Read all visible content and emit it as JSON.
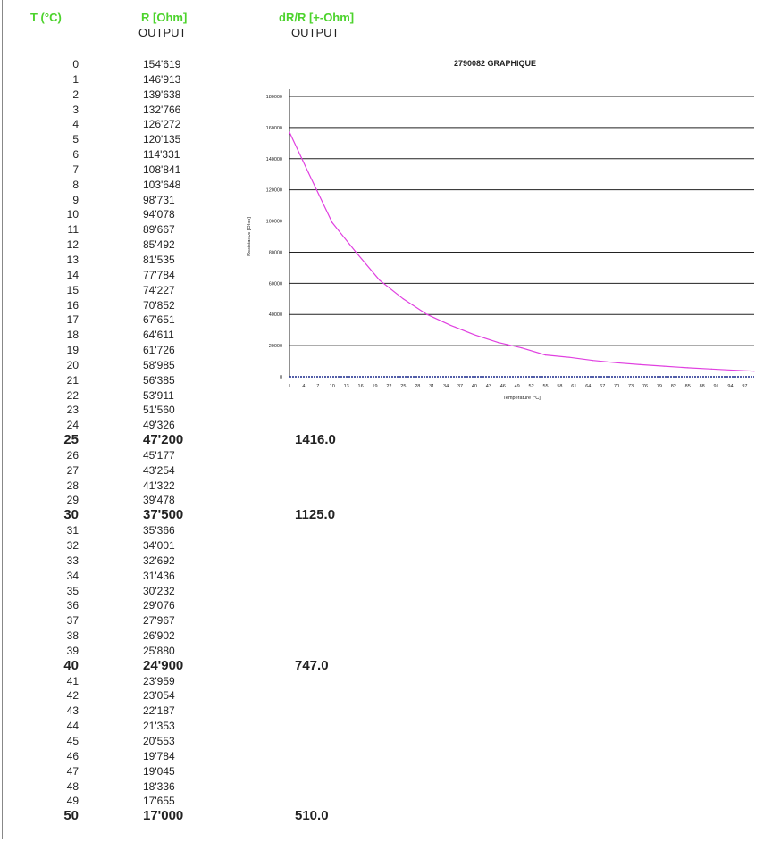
{
  "headers": {
    "t": "T (°C)",
    "r": "R [Ohm]",
    "r_sub": "OUTPUT",
    "d": "dR/R [+-Ohm]",
    "d_sub": "OUTPUT"
  },
  "rows": [
    {
      "t": "0",
      "r": "154'619",
      "d": ""
    },
    {
      "t": "1",
      "r": "146'913",
      "d": ""
    },
    {
      "t": "2",
      "r": "139'638",
      "d": ""
    },
    {
      "t": "3",
      "r": "132'766",
      "d": ""
    },
    {
      "t": "4",
      "r": "126'272",
      "d": ""
    },
    {
      "t": "5",
      "r": "120'135",
      "d": ""
    },
    {
      "t": "6",
      "r": "114'331",
      "d": ""
    },
    {
      "t": "7",
      "r": "108'841",
      "d": ""
    },
    {
      "t": "8",
      "r": "103'648",
      "d": ""
    },
    {
      "t": "9",
      "r": "98'731",
      "d": ""
    },
    {
      "t": "10",
      "r": "94'078",
      "d": ""
    },
    {
      "t": "11",
      "r": "89'667",
      "d": ""
    },
    {
      "t": "12",
      "r": "85'492",
      "d": ""
    },
    {
      "t": "13",
      "r": "81'535",
      "d": ""
    },
    {
      "t": "14",
      "r": "77'784",
      "d": ""
    },
    {
      "t": "15",
      "r": "74'227",
      "d": ""
    },
    {
      "t": "16",
      "r": "70'852",
      "d": ""
    },
    {
      "t": "17",
      "r": "67'651",
      "d": ""
    },
    {
      "t": "18",
      "r": "64'611",
      "d": ""
    },
    {
      "t": "19",
      "r": "61'726",
      "d": ""
    },
    {
      "t": "20",
      "r": "58'985",
      "d": ""
    },
    {
      "t": "21",
      "r": "56'385",
      "d": ""
    },
    {
      "t": "22",
      "r": "53'911",
      "d": ""
    },
    {
      "t": "23",
      "r": "51'560",
      "d": ""
    },
    {
      "t": "24",
      "r": "49'326",
      "d": ""
    },
    {
      "t": "25",
      "r": "47'200",
      "d": "1416.0",
      "bold": true
    },
    {
      "t": "26",
      "r": "45'177",
      "d": ""
    },
    {
      "t": "27",
      "r": "43'254",
      "d": ""
    },
    {
      "t": "28",
      "r": "41'322",
      "d": ""
    },
    {
      "t": "29",
      "r": "39'478",
      "d": ""
    },
    {
      "t": "30",
      "r": "37'500",
      "d": "1125.0",
      "bold": true
    },
    {
      "t": "31",
      "r": "35'366",
      "d": ""
    },
    {
      "t": "32",
      "r": "34'001",
      "d": ""
    },
    {
      "t": "33",
      "r": "32'692",
      "d": ""
    },
    {
      "t": "34",
      "r": "31'436",
      "d": ""
    },
    {
      "t": "35",
      "r": "30'232",
      "d": ""
    },
    {
      "t": "36",
      "r": "29'076",
      "d": ""
    },
    {
      "t": "37",
      "r": "27'967",
      "d": ""
    },
    {
      "t": "38",
      "r": "26'902",
      "d": ""
    },
    {
      "t": "39",
      "r": "25'880",
      "d": ""
    },
    {
      "t": "40",
      "r": "24'900",
      "d": "747.0",
      "bold": true
    },
    {
      "t": "41",
      "r": "23'959",
      "d": ""
    },
    {
      "t": "42",
      "r": "23'054",
      "d": ""
    },
    {
      "t": "43",
      "r": "22'187",
      "d": ""
    },
    {
      "t": "44",
      "r": "21'353",
      "d": ""
    },
    {
      "t": "45",
      "r": "20'553",
      "d": ""
    },
    {
      "t": "46",
      "r": "19'784",
      "d": ""
    },
    {
      "t": "47",
      "r": "19'045",
      "d": ""
    },
    {
      "t": "48",
      "r": "18'336",
      "d": ""
    },
    {
      "t": "49",
      "r": "17'655",
      "d": ""
    },
    {
      "t": "50",
      "r": "17'000",
      "d": "510.0",
      "bold": true
    }
  ],
  "chart_data": {
    "type": "line",
    "title": "2790082 GRAPHIQUE",
    "xlabel": "Temperature [°C]",
    "ylabel": "Resistance [Ohm]",
    "xlim": [
      1,
      99
    ],
    "ylim": [
      0,
      180000
    ],
    "yticks": [
      0,
      20000,
      40000,
      60000,
      80000,
      100000,
      120000,
      140000,
      160000,
      180000
    ],
    "xticks": [
      1,
      4,
      7,
      10,
      13,
      16,
      19,
      22,
      25,
      28,
      31,
      34,
      37,
      40,
      43,
      46,
      49,
      52,
      55,
      58,
      61,
      64,
      67,
      70,
      73,
      76,
      79,
      82,
      85,
      88,
      91,
      94,
      97
    ],
    "grid": "horizontal",
    "colors": {
      "series": "#e040e0",
      "baseline": "#1a2a8c"
    },
    "series": [
      {
        "x": [
          1,
          5,
          10,
          15,
          20,
          25,
          30,
          35,
          40,
          45,
          50,
          55,
          60,
          65,
          70,
          75,
          80,
          85,
          90,
          95,
          99
        ],
        "values": [
          157000,
          131000,
          99000,
          80000,
          62000,
          50000,
          40000,
          33000,
          27000,
          22000,
          18500,
          14000,
          12500,
          10500,
          9000,
          7800,
          6800,
          5800,
          5000,
          4200,
          3600
        ]
      }
    ]
  }
}
